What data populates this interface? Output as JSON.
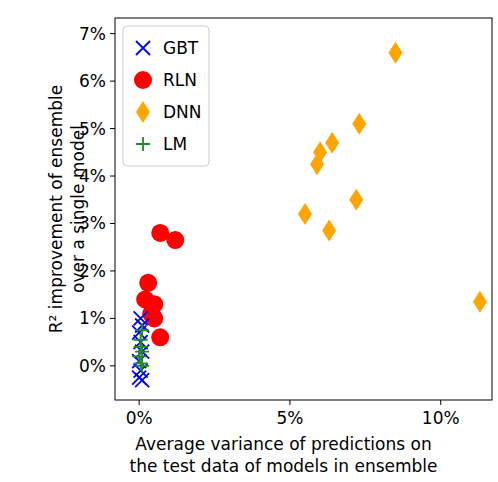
{
  "chart_data": {
    "type": "scatter",
    "x_label": "Average variance of predictions on\nthe test data of models in ensemble",
    "y_label": "R² improvement of ensemble\nover a single model",
    "xlim": [
      -0.8,
      11.7
    ],
    "ylim": [
      -0.72,
      7.33
    ],
    "xticks": [
      {
        "value": 0,
        "label": "0%"
      },
      {
        "value": 5,
        "label": "5%"
      },
      {
        "value": 10,
        "label": "10%"
      }
    ],
    "yticks": [
      {
        "value": 0,
        "label": "0%"
      },
      {
        "value": 1,
        "label": "1%"
      },
      {
        "value": 2,
        "label": "2%"
      },
      {
        "value": 3,
        "label": "3%"
      },
      {
        "value": 4,
        "label": "4%"
      },
      {
        "value": 5,
        "label": "5%"
      },
      {
        "value": 6,
        "label": "6%"
      },
      {
        "value": 7,
        "label": "7%"
      }
    ],
    "legend": "upper-left",
    "grid": false,
    "series": [
      {
        "name": "GBT",
        "color": "#0000ff",
        "marker": "x",
        "x": [
          0.05,
          0.1,
          0.0,
          0.05,
          0.1,
          0.0,
          0.05,
          0.1,
          0.0
        ],
        "values": [
          1.0,
          0.85,
          0.7,
          0.5,
          0.3,
          0.1,
          -0.1,
          -0.3,
          -0.25
        ]
      },
      {
        "name": "RLN",
        "color": "#ff0000",
        "marker": "circle",
        "x": [
          0.7,
          1.2,
          0.3,
          0.2,
          0.5,
          0.5,
          0.7,
          0.4
        ],
        "values": [
          2.8,
          2.65,
          1.75,
          1.4,
          1.3,
          1.0,
          0.6,
          1.1
        ]
      },
      {
        "name": "DNN",
        "color": "#ffa500",
        "marker": "diamond",
        "x": [
          8.5,
          7.3,
          6.4,
          6.0,
          5.9,
          7.2,
          5.5,
          6.3,
          11.3
        ],
        "values": [
          6.6,
          5.1,
          4.7,
          4.5,
          4.25,
          3.5,
          3.2,
          2.85,
          1.35
        ]
      },
      {
        "name": "LM",
        "color": "#228b22",
        "marker": "plus",
        "x": [
          0.1,
          0.05,
          0.1,
          0.0,
          0.05,
          0.1,
          0.05
        ],
        "values": [
          0.75,
          0.4,
          0.3,
          0.2,
          0.05,
          0.0,
          0.55
        ]
      }
    ]
  }
}
